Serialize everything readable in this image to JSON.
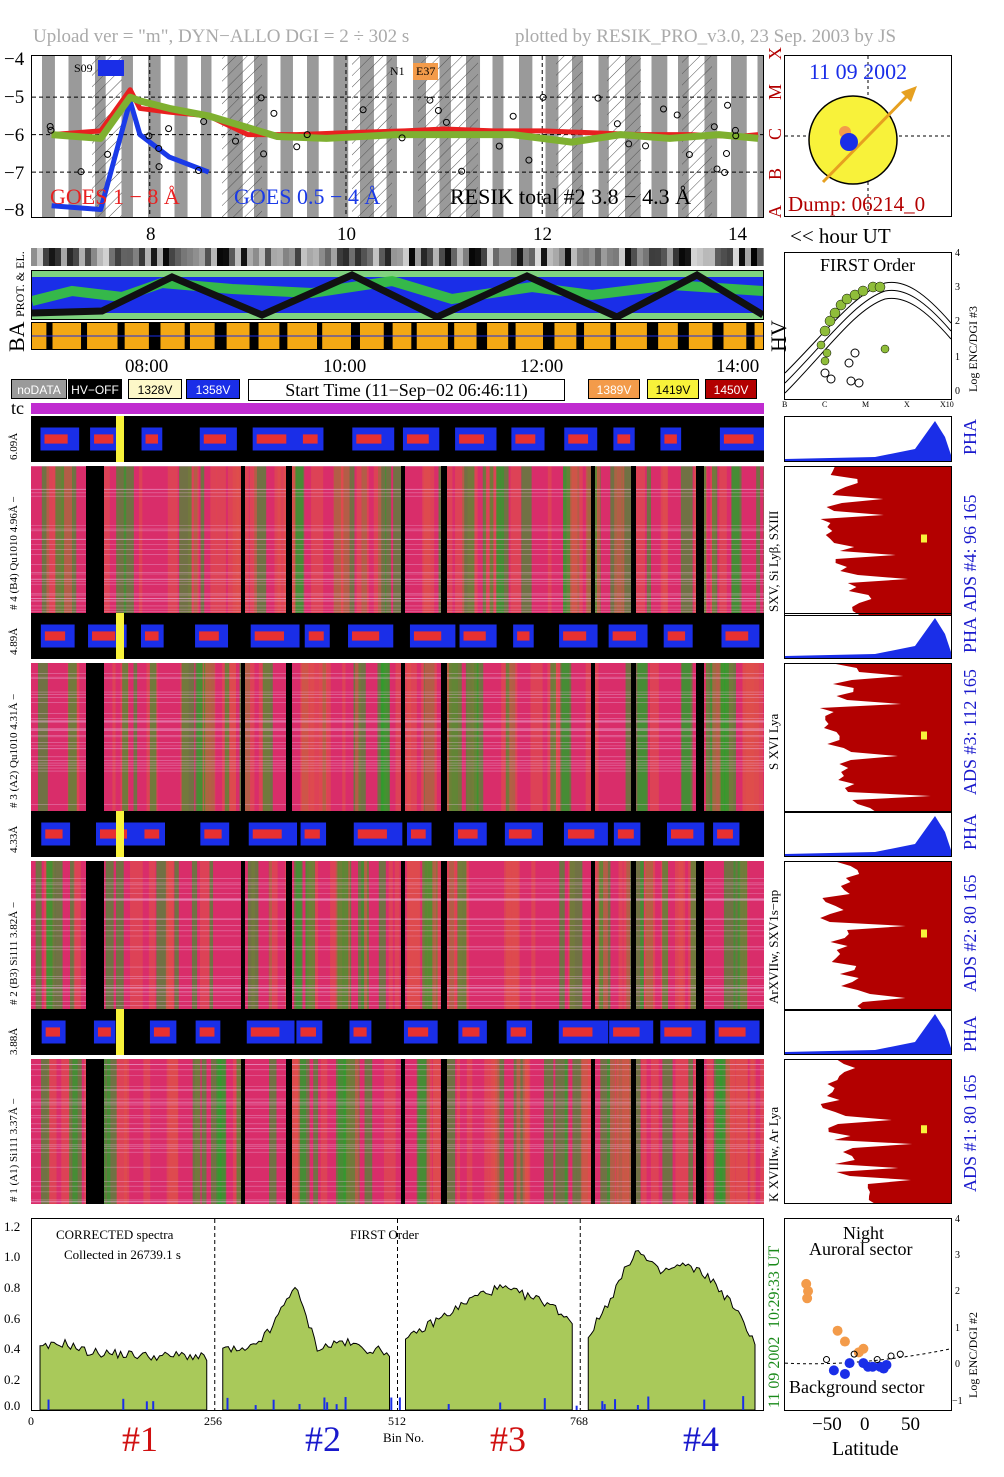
{
  "header": {
    "left": "Upload ver = \"m\", DYN−ALLO DGI =   2 ÷ 302 s",
    "right": "plotted by RESIK_PRO_v3.0, 23 Sep. 2003 by JS"
  },
  "colors": {
    "goes_long": "#e82020",
    "goes_short": "#1a3ae8",
    "resik": "#7fb030",
    "gray_band": "#9a9a9a",
    "orange": "#f39b4a",
    "dark_red": "#b30000",
    "pha_blue": "#1a2ee8",
    "spectrum_fill": "#a9c95a",
    "magenta": "#c02cd0",
    "sun_yellow": "#f8f23a",
    "ads_blue": "#1919cc",
    "green_time": "#1a8a1a"
  },
  "goes_panel": {
    "y_ticks": [
      "−4",
      "−5",
      "−6",
      "−7",
      "−8"
    ],
    "class_labels": [
      "X",
      "M",
      "C",
      "B",
      "A"
    ],
    "x_ticks": [
      "8",
      "10",
      "12",
      "14"
    ],
    "legend_goes_long": "GOES 1 − 8 Å",
    "legend_goes_short": "GOES 0.5 − 4 Å",
    "legend_resik": "RESIK total #2  3.8 − 4.3 Å",
    "flag_saa": "S09",
    "flag_n": "N1",
    "flag_e": "E37"
  },
  "sun_panel": {
    "date": "11 09 2002",
    "dump": "Dump: 06214_0"
  },
  "hour_ut_label": "<< hour UT",
  "strip_labels": {
    "prot": "PROT. & EL.",
    "ba": "BA",
    "hv": "HV"
  },
  "time_ticks": [
    "08:00",
    "10:00",
    "12:00",
    "14:00"
  ],
  "legend_boxes": {
    "nodata": "noDATA",
    "hvoff": "HV−OFF",
    "v1328": "1328V",
    "v1358": "1358V",
    "start_time": "Start Time (11−Sep−02 06:46:11)",
    "v1389": "1389V",
    "v1419": "1419V",
    "v1450": "1450V"
  },
  "tc_label": "tc",
  "first_order_panel": {
    "title": "FIRST Order",
    "ylabel": "Log ENC/DGI #3",
    "y_ticks": [
      "4",
      "3",
      "2",
      "1",
      "0"
    ],
    "x_ticks": [
      "B",
      "C",
      "M",
      "X",
      "X10"
    ]
  },
  "spectrograms": [
    {
      "pha_label": "6.09Å",
      "label": "# 4 (B4) Qu1010 4.96Å −",
      "lines": "SXV, Si Lyβ, SXIII",
      "ads": "ADS #4:   96 165"
    },
    {
      "pha_label": "4.89Å",
      "label": "# 3 (A2) Qu1010  4.31Å −",
      "lines": "S XVI Lya",
      "ads": "ADS #3:   112 165"
    },
    {
      "pha_label": "4.33Å",
      "label": "# 2 (B3) Si111  3.82Å −",
      "lines": "ArXVIIw, SXV1s−np",
      "ads": "ADS #2:   80 165"
    },
    {
      "pha_label": "3.88Å",
      "label": "# 1 (A1) Si111  3.37Å −",
      "lines": "K XVIIIw, Ar Lya",
      "ads": "ADS #1:   80 165"
    }
  ],
  "pha_label": "PHA",
  "spectrum_panel": {
    "title1": "CORRECTED spectra",
    "title2": "Collected in 26739.1 s",
    "first_order": "FIRST Order",
    "y_ticks": [
      "1.2",
      "1.0",
      "0.8",
      "0.6",
      "0.4",
      "0.2",
      "0.0"
    ],
    "x_ticks": [
      "0",
      "256",
      "512",
      "768"
    ],
    "xlabel": "Bin No.",
    "time_label": "11 09 2002",
    "time_label2": "10:29:33 UT",
    "crystal_labels": [
      "#1",
      "#2",
      "#3",
      "#4"
    ]
  },
  "latitude_panel": {
    "title1": "Night",
    "title2": "Auroral sector",
    "bottom": "Background sector",
    "xlabel": "Latitude",
    "ylabel": "Log ENC/DGI #2",
    "x_ticks": [
      "−50",
      "0",
      "50"
    ],
    "y_ticks": [
      "4",
      "3",
      "2",
      "1",
      "0",
      "−1"
    ]
  },
  "chart_data": [
    {
      "type": "line",
      "title": "",
      "xlabel": "",
      "ylabel": "",
      "series": [
        {
          "name": "GOES 1 − 8 Å",
          "x": [
            7.0,
            7.5,
            7.8,
            7.9,
            8.2,
            8.6,
            9.0,
            9.5,
            10.0,
            10.6,
            11.0,
            11.5,
            12.0,
            12.5,
            13.0,
            13.5,
            14.0,
            14.2
          ],
          "y": [
            -6.0,
            -5.9,
            -4.8,
            -5.3,
            -5.4,
            -5.5,
            -6.0,
            -6.0,
            -5.95,
            -5.9,
            -5.85,
            -5.9,
            -5.9,
            -5.95,
            -6.0,
            -6.0,
            -6.05,
            -6.0
          ]
        },
        {
          "name": "GOES 0.5 − 4 Å",
          "x": [
            7.0,
            7.5,
            7.8,
            7.9,
            8.2,
            8.6
          ],
          "y": [
            -7.9,
            -8.0,
            -5.1,
            -6.0,
            -6.6,
            -7.0
          ]
        },
        {
          "name": "RESIK total #2  3.8 − 4.3 Å",
          "x": [
            7.0,
            7.5,
            7.8,
            7.9,
            8.2,
            8.6,
            9.3,
            9.8,
            10.5,
            11.2,
            11.7,
            12.3,
            12.8,
            13.3,
            13.8,
            14.2
          ],
          "y": [
            -6.0,
            -6.1,
            -5.0,
            -5.1,
            -5.3,
            -5.5,
            -6.05,
            -6.1,
            -6.0,
            -6.0,
            -6.0,
            -6.2,
            -6.0,
            -6.1,
            -6.0,
            -6.1
          ]
        }
      ],
      "ylim": [
        -8.2,
        -3.9
      ]
    },
    {
      "type": "area",
      "title": "",
      "xlabel": "Bin No.",
      "ylabel": "",
      "segments": [
        {
          "name": "#1",
          "bins": [
            0,
            256
          ],
          "y": [
            0.4,
            0.44,
            0.38,
            0.37,
            0.36,
            0.35,
            0.36,
            0.34
          ]
        },
        {
          "name": "#2",
          "bins": [
            256,
            512
          ],
          "y": [
            0.4,
            0.38,
            0.52,
            0.82,
            0.4,
            0.45,
            0.4,
            0.38
          ]
        },
        {
          "name": "#3",
          "bins": [
            512,
            768
          ],
          "y": [
            0.45,
            0.56,
            0.65,
            0.75,
            0.8,
            0.75,
            0.7,
            0.58
          ]
        },
        {
          "name": "#4",
          "bins": [
            768,
            1024
          ],
          "y": [
            0.48,
            0.75,
            1.05,
            0.9,
            0.95,
            0.88,
            0.7,
            0.45
          ]
        }
      ],
      "ylim": [
        0,
        1.25
      ],
      "xlim": [
        0,
        1024
      ]
    },
    {
      "type": "scatter",
      "title": "",
      "xlabel": "Latitude",
      "ylabel": "Log ENC/DGI #2",
      "series": [
        {
          "name": "",
          "color": "#f39b4a",
          "x": [
            -62,
            -60,
            -61,
            -28,
            -20,
            -5,
            0
          ],
          "y": [
            2.4,
            2.2,
            2.0,
            1.1,
            0.8,
            0.5,
            0.6
          ]
        },
        {
          "name": "",
          "color": "#1a2ee8",
          "x": [
            -32,
            -20,
            -15,
            0,
            5,
            10,
            18,
            22,
            25
          ],
          "y": [
            0.0,
            -0.1,
            0.2,
            0.2,
            0.1,
            0.1,
            0.1,
            0.05,
            0.15
          ]
        }
      ],
      "xlim": [
        -85,
        95
      ],
      "ylim": [
        -1.1,
        4.2
      ]
    }
  ]
}
